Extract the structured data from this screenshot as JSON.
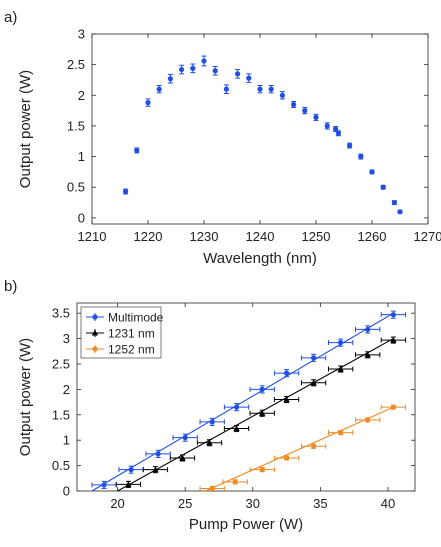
{
  "chart_data": [
    {
      "panel": "a)",
      "type": "scatter",
      "title": "",
      "xlabel": "Wavelength (nm)",
      "ylabel": "Output power (W)",
      "xlim": [
        1210,
        1270
      ],
      "ylim": [
        -0.1,
        3
      ],
      "xticks": [
        1210,
        1220,
        1230,
        1240,
        1250,
        1260,
        1270
      ],
      "yticks": [
        0,
        0.5,
        1,
        1.5,
        2,
        2.5,
        3
      ],
      "xtick_labels": [
        "1210",
        "1220",
        "1230",
        "1240",
        "1250",
        "1260",
        "1270"
      ],
      "ytick_labels": [
        "0",
        "0.5",
        "1",
        "1.5",
        "2",
        "2.5",
        "3"
      ],
      "grid": false,
      "series": [
        {
          "color": "#1f4fe0",
          "marker": "circle",
          "x": [
            1216,
            1218,
            1220,
            1222,
            1224,
            1226,
            1228,
            1230,
            1232,
            1234,
            1236,
            1238,
            1240,
            1242,
            1244,
            1246,
            1248,
            1250,
            1252,
            1253.5,
            1254,
            1256,
            1258,
            1260,
            1262,
            1264,
            1265
          ],
          "y": [
            0.43,
            1.1,
            1.88,
            2.1,
            2.27,
            2.42,
            2.44,
            2.56,
            2.4,
            2.1,
            2.35,
            2.28,
            2.1,
            2.1,
            2.0,
            1.85,
            1.75,
            1.64,
            1.5,
            1.45,
            1.38,
            1.18,
            1.0,
            0.75,
            0.5,
            0.25,
            0.1
          ],
          "yerr": [
            0.04,
            0.04,
            0.06,
            0.06,
            0.07,
            0.07,
            0.07,
            0.08,
            0.07,
            0.07,
            0.07,
            0.07,
            0.06,
            0.06,
            0.06,
            0.05,
            0.05,
            0.05,
            0.05,
            0.04,
            0.04,
            0.04,
            0.04,
            0.03,
            0.03,
            0.03,
            0.02
          ]
        }
      ]
    },
    {
      "panel": "b)",
      "type": "line",
      "title": "",
      "xlabel": "Pump Power (W)",
      "ylabel": "Output power (W)",
      "xlim": [
        17,
        42
      ],
      "ylim": [
        0,
        3.7
      ],
      "xticks": [
        20,
        25,
        30,
        35,
        40
      ],
      "yticks": [
        0,
        0.5,
        1,
        1.5,
        2,
        2.5,
        3,
        3.5
      ],
      "xtick_labels": [
        "20",
        "25",
        "30",
        "35",
        "40"
      ],
      "ytick_labels": [
        "0",
        "0.5",
        "1",
        "1.5",
        "2",
        "2.5",
        "3",
        "3.5"
      ],
      "grid": false,
      "legend": "top-left",
      "series": [
        {
          "name": "Multimode",
          "color": "#1f4fe0",
          "marker": "circle",
          "fit": [
            [
              18.1,
              0
            ],
            [
              40.4,
              3.5
            ]
          ],
          "x": [
            19.0,
            21.0,
            23.0,
            25.0,
            27.0,
            28.8,
            30.7,
            32.5,
            34.5,
            36.5,
            38.5,
            40.4
          ],
          "y": [
            0.12,
            0.42,
            0.73,
            1.05,
            1.36,
            1.65,
            2.0,
            2.32,
            2.62,
            2.92,
            3.18,
            3.47
          ],
          "xerr": 0.9,
          "yerr": 0.07
        },
        {
          "name": "1231 nm",
          "color": "#000000",
          "marker": "triangle",
          "fit": [
            [
              20.0,
              0
            ],
            [
              40.4,
              3.0
            ]
          ],
          "x": [
            20.8,
            22.8,
            24.8,
            26.8,
            28.8,
            30.7,
            32.5,
            34.5,
            36.5,
            38.5,
            40.4
          ],
          "y": [
            0.13,
            0.42,
            0.65,
            0.95,
            1.23,
            1.53,
            1.8,
            2.13,
            2.4,
            2.68,
            2.97
          ],
          "xerr": 0.9,
          "yerr": 0.06
        },
        {
          "name": "1252 nm",
          "color": "#f08a24",
          "marker": "circle",
          "fit": [
            [
              26.5,
              0
            ],
            [
              40.4,
              1.65
            ]
          ],
          "x": [
            27.0,
            28.7,
            30.7,
            32.5,
            34.5,
            36.5,
            38.5,
            40.4
          ],
          "y": [
            0.05,
            0.18,
            0.42,
            0.65,
            0.88,
            1.15,
            1.4,
            1.65
          ],
          "xerr": 0.9,
          "yerr": 0.04
        }
      ]
    }
  ]
}
